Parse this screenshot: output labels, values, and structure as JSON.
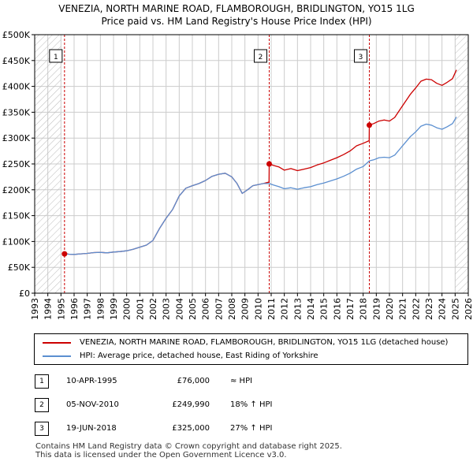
{
  "title": "VENEZIA, NORTH MARINE ROAD, FLAMBOROUGH, BRIDLINGTON, YO15 1LG",
  "subtitle": "Price paid vs. HM Land Registry's House Price Index (HPI)",
  "colors": {
    "price_line": "#cc0000",
    "hpi_line": "#5b8fd0",
    "grid": "#cccccc",
    "marker_line": "#cc0000",
    "hatch": "#bbbbbb"
  },
  "chart_data": {
    "type": "line",
    "title": "VENEZIA, NORTH MARINE ROAD, FLAMBOROUGH, BRIDLINGTON, YO15 1LG",
    "subtitle": "Price paid vs. HM Land Registry's House Price Index (HPI)",
    "xlabel": "",
    "ylabel": "",
    "xlim": [
      1993,
      2026
    ],
    "ylim": [
      0,
      500000
    ],
    "grid": true,
    "x_ticks": [
      1993,
      1994,
      1995,
      1996,
      1997,
      1998,
      1999,
      2000,
      2001,
      2002,
      2003,
      2004,
      2005,
      2006,
      2007,
      2008,
      2009,
      2010,
      2011,
      2012,
      2013,
      2014,
      2015,
      2016,
      2017,
      2018,
      2019,
      2020,
      2021,
      2022,
      2023,
      2024,
      2025,
      2026
    ],
    "x_tick_labels": [
      "1993",
      "1994",
      "1995",
      "1996",
      "1997",
      "1998",
      "1999",
      "2000",
      "2001",
      "2002",
      "2003",
      "2004",
      "2005",
      "2006",
      "2007",
      "2008",
      "2009",
      "2010",
      "2011",
      "2012",
      "2013",
      "2014",
      "2015",
      "2016",
      "2017",
      "2018",
      "2019",
      "2020",
      "2021",
      "2022",
      "2023",
      "2024",
      "2025",
      "2026"
    ],
    "y_ticks": [
      0,
      50000,
      100000,
      150000,
      200000,
      250000,
      300000,
      350000,
      400000,
      450000,
      500000
    ],
    "y_tick_labels": [
      "£0",
      "£50K",
      "£100K",
      "£150K",
      "£200K",
      "£250K",
      "£300K",
      "£350K",
      "£400K",
      "£450K",
      "£500K"
    ],
    "series": [
      {
        "name": "VENEZIA, NORTH MARINE ROAD, FLAMBOROUGH, BRIDLINGTON, YO15 1LG (detached house)",
        "color": "#cc0000",
        "x": [
          1995.27,
          1995.6,
          1996.0,
          1996.5,
          1997.0,
          1997.5,
          1998.0,
          1998.5,
          1999.0,
          1999.5,
          2000.0,
          2000.5,
          2001.0,
          2001.5,
          2002.0,
          2002.5,
          2003.0,
          2003.5,
          2004.0,
          2004.5,
          2005.0,
          2005.5,
          2006.0,
          2006.5,
          2007.0,
          2007.5,
          2008.0,
          2008.4,
          2008.8,
          2009.2,
          2009.6,
          2010.0,
          2010.4,
          2010.84,
          2010.85,
          2011.2,
          2011.6,
          2012.0,
          2012.5,
          2013.0,
          2013.5,
          2014.0,
          2014.5,
          2015.0,
          2015.5,
          2016.0,
          2016.5,
          2017.0,
          2017.5,
          2018.0,
          2018.46,
          2018.47,
          2018.8,
          2019.2,
          2019.6,
          2020.0,
          2020.4,
          2020.8,
          2021.2,
          2021.6,
          2022.0,
          2022.4,
          2022.8,
          2023.2,
          2023.6,
          2024.0,
          2024.4,
          2024.8,
          2025.1
        ],
        "values": [
          76000,
          75500,
          75000,
          76000,
          77000,
          78500,
          79000,
          78000,
          79500,
          80500,
          82000,
          85000,
          89000,
          93000,
          102000,
          125000,
          145000,
          162000,
          188000,
          203000,
          208000,
          212000,
          218000,
          226000,
          230000,
          232000,
          225000,
          212000,
          193000,
          200000,
          208000,
          210000,
          212000,
          215000,
          249990,
          247000,
          244000,
          238000,
          241000,
          237000,
          240000,
          243000,
          248000,
          252000,
          257000,
          262000,
          268000,
          275000,
          285000,
          290000,
          295000,
          325000,
          328000,
          333000,
          335000,
          333000,
          340000,
          355000,
          370000,
          385000,
          397000,
          410000,
          414000,
          413000,
          406000,
          402000,
          408000,
          415000,
          432000
        ]
      },
      {
        "name": "HPI: Average price, detached house, East Riding of Yorkshire",
        "color": "#5b8fd0",
        "x": [
          1995.27,
          1995.6,
          1996.0,
          1996.5,
          1997.0,
          1997.5,
          1998.0,
          1998.5,
          1999.0,
          1999.5,
          2000.0,
          2000.5,
          2001.0,
          2001.5,
          2002.0,
          2002.5,
          2003.0,
          2003.5,
          2004.0,
          2004.5,
          2005.0,
          2005.5,
          2006.0,
          2006.5,
          2007.0,
          2007.5,
          2008.0,
          2008.4,
          2008.8,
          2009.2,
          2009.6,
          2010.0,
          2010.4,
          2010.85,
          2011.2,
          2011.6,
          2012.0,
          2012.5,
          2013.0,
          2013.5,
          2014.0,
          2014.5,
          2015.0,
          2015.5,
          2016.0,
          2016.5,
          2017.0,
          2017.5,
          2018.0,
          2018.47,
          2018.8,
          2019.2,
          2019.6,
          2020.0,
          2020.4,
          2020.8,
          2021.2,
          2021.6,
          2022.0,
          2022.4,
          2022.8,
          2023.2,
          2023.6,
          2024.0,
          2024.4,
          2024.8,
          2025.1
        ],
        "values": [
          76000,
          75500,
          75000,
          76000,
          77000,
          78500,
          79000,
          78000,
          79500,
          80500,
          82000,
          85000,
          89000,
          93000,
          102000,
          125000,
          145000,
          162000,
          188000,
          203000,
          208000,
          212000,
          218000,
          226000,
          230000,
          232000,
          225000,
          212000,
          193000,
          200000,
          208000,
          210000,
          212000,
          212000,
          209000,
          206000,
          202000,
          204000,
          201000,
          204000,
          206000,
          210000,
          213000,
          217000,
          221000,
          226000,
          232000,
          240000,
          245000,
          256000,
          258000,
          262000,
          263000,
          262000,
          267000,
          279000,
          291000,
          303000,
          312000,
          323000,
          327000,
          325000,
          320000,
          317000,
          322000,
          328000,
          341000
        ]
      }
    ],
    "sales": [
      {
        "id": "1",
        "x": 1995.27,
        "value": 76000
      },
      {
        "id": "2",
        "x": 2010.85,
        "value": 249990
      },
      {
        "id": "3",
        "x": 2018.47,
        "value": 325000
      }
    ],
    "hatch_before": 1995.0,
    "hatch_after": 2025.0
  },
  "legend": {
    "property_label": "VENEZIA, NORTH MARINE ROAD, FLAMBOROUGH, BRIDLINGTON, YO15 1LG (detached house)",
    "hpi_label": "HPI: Average price, detached house, East Riding of Yorkshire"
  },
  "sales_table": [
    {
      "num": "1",
      "date": "10-APR-1995",
      "price": "£76,000",
      "hpi": "≈ HPI"
    },
    {
      "num": "2",
      "date": "05-NOV-2010",
      "price": "£249,990",
      "hpi": "18% ↑ HPI"
    },
    {
      "num": "3",
      "date": "19-JUN-2018",
      "price": "£325,000",
      "hpi": "27% ↑ HPI"
    }
  ],
  "footer": {
    "line1": "Contains HM Land Registry data © Crown copyright and database right 2025.",
    "line2": "This data is licensed under the Open Government Licence v3.0."
  }
}
